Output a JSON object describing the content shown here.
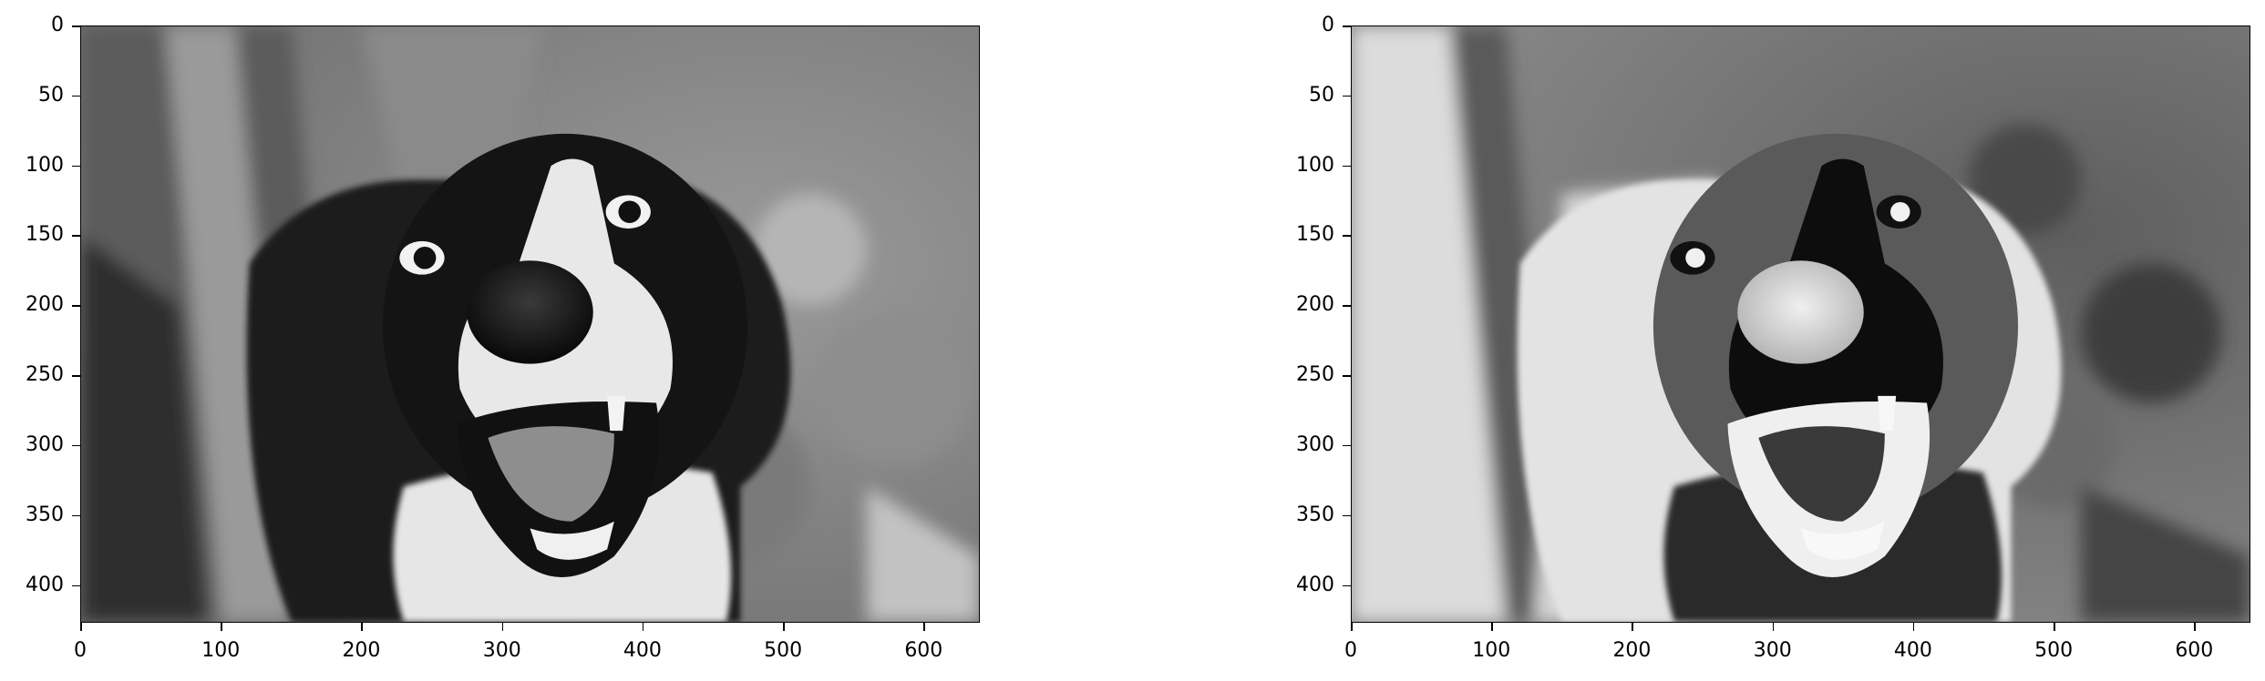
{
  "figure": {
    "panels": [
      {
        "description_id": "original",
        "x_ticks": [
          "0",
          "100",
          "200",
          "300",
          "400",
          "500",
          "600"
        ],
        "y_ticks": [
          "0",
          "50",
          "100",
          "150",
          "200",
          "250",
          "300",
          "350",
          "400"
        ]
      },
      {
        "description_id": "processed",
        "x_ticks": [
          "0",
          "100",
          "200",
          "300",
          "400",
          "500",
          "600"
        ],
        "y_ticks": [
          "0",
          "50",
          "100",
          "150",
          "200",
          "250",
          "300",
          "350",
          "400"
        ]
      }
    ]
  }
}
